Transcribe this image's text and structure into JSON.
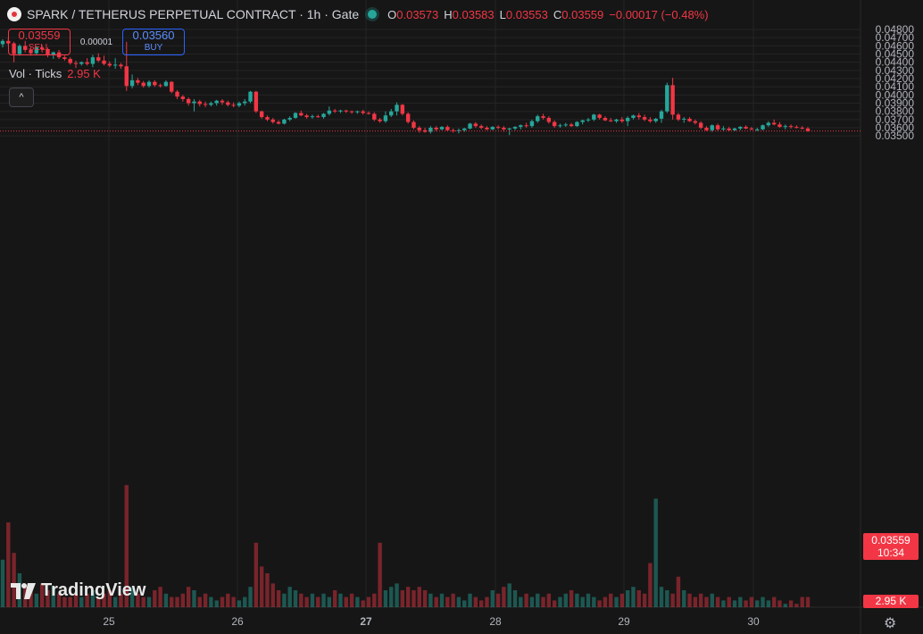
{
  "header": {
    "title": "SPARK / TETHERUS PERPETUAL CONTRACT · 1h · Gate",
    "ohlc": [
      {
        "k": "O",
        "v": "0.03573"
      },
      {
        "k": "H",
        "v": "0.03583"
      },
      {
        "k": "L",
        "v": "0.03553"
      },
      {
        "k": "C",
        "v": "0.03559"
      }
    ],
    "change": "−0.00017 (−0.48%)"
  },
  "trade": {
    "sell_price": "0.03559",
    "sell_label": "SELL",
    "spread": "0.00001",
    "buy_price": "0.03560",
    "buy_label": "BUY"
  },
  "volume": {
    "label": "Vol · Ticks",
    "value": "2.95 K"
  },
  "collapse_icon": "chevron-up-icon",
  "branding": "TradingView",
  "price_label": {
    "price": "0.03559",
    "countdown": "10:34"
  },
  "vol_label": "2.95 K",
  "colors": {
    "up": "#26a69a",
    "down": "#f23645",
    "bg": "#161616",
    "grid": "#242424"
  },
  "chart_data": {
    "type": "candlestick",
    "y_ticks": [
      "0.04800",
      "0.04700",
      "0.04600",
      "0.04500",
      "0.04400",
      "0.04300",
      "0.04200",
      "0.04100",
      "0.04000",
      "0.03900",
      "0.03800",
      "0.03700",
      "0.03600",
      "0.03500"
    ],
    "ylim": [
      0.0345,
      0.0482
    ],
    "x_labels": [
      "25",
      "26",
      "27",
      "28",
      "29",
      "30"
    ],
    "last_price": 0.03559,
    "candles": [
      [
        0.0462,
        0.0468,
        0.0458,
        0.0466
      ],
      [
        0.0466,
        0.047,
        0.046,
        0.0463
      ],
      [
        0.0463,
        0.0465,
        0.044,
        0.045
      ],
      [
        0.045,
        0.0462,
        0.0448,
        0.046
      ],
      [
        0.046,
        0.0466,
        0.0452,
        0.0455
      ],
      [
        0.0455,
        0.0458,
        0.0448,
        0.0451
      ],
      [
        0.0451,
        0.046,
        0.0449,
        0.0458
      ],
      [
        0.0458,
        0.0461,
        0.0452,
        0.0456
      ],
      [
        0.0456,
        0.0458,
        0.0446,
        0.0449
      ],
      [
        0.0449,
        0.0453,
        0.0444,
        0.0452
      ],
      [
        0.0452,
        0.0455,
        0.0444,
        0.0446
      ],
      [
        0.0446,
        0.0448,
        0.0442,
        0.0444
      ],
      [
        0.0444,
        0.0446,
        0.0437,
        0.0439
      ],
      [
        0.0439,
        0.0442,
        0.0433,
        0.0438
      ],
      [
        0.0438,
        0.0441,
        0.0436,
        0.044
      ],
      [
        0.044,
        0.0445,
        0.0436,
        0.0438
      ],
      [
        0.0438,
        0.0449,
        0.0434,
        0.0446
      ],
      [
        0.0446,
        0.0451,
        0.044,
        0.0442
      ],
      [
        0.0442,
        0.0448,
        0.0436,
        0.0438
      ],
      [
        0.0438,
        0.0441,
        0.0434,
        0.0436
      ],
      [
        0.0436,
        0.0445,
        0.0432,
        0.0437
      ],
      [
        0.0437,
        0.0439,
        0.0432,
        0.0435
      ],
      [
        0.0435,
        0.0465,
        0.0405,
        0.0411
      ],
      [
        0.0411,
        0.0425,
        0.0408,
        0.0418
      ],
      [
        0.0418,
        0.0421,
        0.0412,
        0.0415
      ],
      [
        0.0415,
        0.0417,
        0.0409,
        0.0411
      ],
      [
        0.0411,
        0.0418,
        0.0409,
        0.0416
      ],
      [
        0.0416,
        0.0418,
        0.041,
        0.0412
      ],
      [
        0.0412,
        0.0414,
        0.0409,
        0.0411
      ],
      [
        0.0411,
        0.0418,
        0.041,
        0.0416
      ],
      [
        0.0416,
        0.0417,
        0.0402,
        0.0404
      ],
      [
        0.0404,
        0.0406,
        0.0395,
        0.0398
      ],
      [
        0.0398,
        0.04,
        0.0392,
        0.0395
      ],
      [
        0.0395,
        0.0397,
        0.0387,
        0.039
      ],
      [
        0.039,
        0.0395,
        0.038,
        0.0392
      ],
      [
        0.0392,
        0.0394,
        0.0386,
        0.0389
      ],
      [
        0.0389,
        0.0392,
        0.0385,
        0.0388
      ],
      [
        0.0388,
        0.0392,
        0.0386,
        0.039
      ],
      [
        0.039,
        0.0394,
        0.0387,
        0.0393
      ],
      [
        0.0393,
        0.0395,
        0.0388,
        0.0391
      ],
      [
        0.0391,
        0.0393,
        0.0386,
        0.0388
      ],
      [
        0.0388,
        0.0391,
        0.0385,
        0.0387
      ],
      [
        0.0387,
        0.0392,
        0.0385,
        0.039
      ],
      [
        0.039,
        0.0395,
        0.0387,
        0.0392
      ],
      [
        0.0392,
        0.0405,
        0.039,
        0.0404
      ],
      [
        0.0404,
        0.0405,
        0.0378,
        0.038
      ],
      [
        0.038,
        0.0381,
        0.0371,
        0.0373
      ],
      [
        0.0373,
        0.0375,
        0.0368,
        0.037
      ],
      [
        0.037,
        0.0372,
        0.0365,
        0.0367
      ],
      [
        0.0367,
        0.0369,
        0.0364,
        0.0365
      ],
      [
        0.0365,
        0.0371,
        0.0364,
        0.037
      ],
      [
        0.037,
        0.0374,
        0.0368,
        0.0372
      ],
      [
        0.0372,
        0.0379,
        0.0371,
        0.0378
      ],
      [
        0.0378,
        0.0381,
        0.0374,
        0.0375
      ],
      [
        0.0375,
        0.0377,
        0.0371,
        0.0373
      ],
      [
        0.0373,
        0.0376,
        0.0371,
        0.0374
      ],
      [
        0.0374,
        0.0376,
        0.0372,
        0.0373
      ],
      [
        0.0373,
        0.0378,
        0.0371,
        0.0377
      ],
      [
        0.0377,
        0.0386,
        0.0375,
        0.0381
      ],
      [
        0.0381,
        0.0383,
        0.0378,
        0.038
      ],
      [
        0.038,
        0.0382,
        0.0378,
        0.0381
      ],
      [
        0.0381,
        0.0382,
        0.0378,
        0.038
      ],
      [
        0.038,
        0.0381,
        0.0377,
        0.0379
      ],
      [
        0.0379,
        0.0381,
        0.0377,
        0.038
      ],
      [
        0.038,
        0.0382,
        0.0376,
        0.0378
      ],
      [
        0.0378,
        0.038,
        0.0376,
        0.0377
      ],
      [
        0.0377,
        0.0379,
        0.0368,
        0.037
      ],
      [
        0.037,
        0.0372,
        0.0366,
        0.0368
      ],
      [
        0.0368,
        0.038,
        0.0366,
        0.0375
      ],
      [
        0.0375,
        0.0383,
        0.0373,
        0.038
      ],
      [
        0.038,
        0.0391,
        0.0375,
        0.0388
      ],
      [
        0.0388,
        0.0389,
        0.0375,
        0.0377
      ],
      [
        0.0377,
        0.0379,
        0.0365,
        0.0367
      ],
      [
        0.0367,
        0.0369,
        0.0358,
        0.036
      ],
      [
        0.036,
        0.0362,
        0.0354,
        0.0357
      ],
      [
        0.0357,
        0.036,
        0.0354,
        0.0355
      ],
      [
        0.0355,
        0.0362,
        0.0353,
        0.036
      ],
      [
        0.036,
        0.0362,
        0.0356,
        0.0358
      ],
      [
        0.0358,
        0.0362,
        0.0357,
        0.0361
      ],
      [
        0.0361,
        0.0363,
        0.0356,
        0.0357
      ],
      [
        0.0357,
        0.0359,
        0.0354,
        0.0356
      ],
      [
        0.0356,
        0.0359,
        0.0353,
        0.0357
      ],
      [
        0.0357,
        0.036,
        0.0355,
        0.0359
      ],
      [
        0.0359,
        0.0366,
        0.0358,
        0.0365
      ],
      [
        0.0365,
        0.0367,
        0.036,
        0.0362
      ],
      [
        0.0362,
        0.0364,
        0.0358,
        0.036
      ],
      [
        0.036,
        0.0362,
        0.0357,
        0.0358
      ],
      [
        0.0358,
        0.0362,
        0.0357,
        0.0361
      ],
      [
        0.0361,
        0.0363,
        0.0358,
        0.036
      ],
      [
        0.036,
        0.0362,
        0.0355,
        0.0358
      ],
      [
        0.0358,
        0.036,
        0.0351,
        0.0359
      ],
      [
        0.0359,
        0.0362,
        0.0357,
        0.0361
      ],
      [
        0.0361,
        0.0364,
        0.0358,
        0.0363
      ],
      [
        0.0363,
        0.0366,
        0.036,
        0.0362
      ],
      [
        0.0362,
        0.037,
        0.036,
        0.0368
      ],
      [
        0.0368,
        0.0376,
        0.0366,
        0.0374
      ],
      [
        0.0374,
        0.0377,
        0.037,
        0.0372
      ],
      [
        0.0372,
        0.0374,
        0.0365,
        0.0367
      ],
      [
        0.0367,
        0.0369,
        0.036,
        0.0362
      ],
      [
        0.0362,
        0.0365,
        0.036,
        0.0363
      ],
      [
        0.0363,
        0.0366,
        0.0361,
        0.0364
      ],
      [
        0.0364,
        0.0366,
        0.0361,
        0.0362
      ],
      [
        0.0362,
        0.0368,
        0.0361,
        0.0367
      ],
      [
        0.0367,
        0.037,
        0.0364,
        0.0369
      ],
      [
        0.0369,
        0.0372,
        0.0367,
        0.037
      ],
      [
        0.037,
        0.0377,
        0.0368,
        0.0376
      ],
      [
        0.0376,
        0.0377,
        0.037,
        0.0372
      ],
      [
        0.0372,
        0.0374,
        0.0368,
        0.0369
      ],
      [
        0.0369,
        0.0372,
        0.0367,
        0.0368
      ],
      [
        0.0368,
        0.0371,
        0.0366,
        0.037
      ],
      [
        0.037,
        0.0373,
        0.0366,
        0.0368
      ],
      [
        0.0368,
        0.0374,
        0.0362,
        0.0372
      ],
      [
        0.0372,
        0.0376,
        0.037,
        0.0375
      ],
      [
        0.0375,
        0.0378,
        0.037,
        0.0373
      ],
      [
        0.0373,
        0.0376,
        0.0368,
        0.037
      ],
      [
        0.037,
        0.0373,
        0.0366,
        0.0368
      ],
      [
        0.0368,
        0.0372,
        0.0366,
        0.0371
      ],
      [
        0.0371,
        0.0382,
        0.0366,
        0.038
      ],
      [
        0.038,
        0.0415,
        0.0378,
        0.0412
      ],
      [
        0.0412,
        0.0421,
        0.037,
        0.0376
      ],
      [
        0.0376,
        0.0378,
        0.0368,
        0.037
      ],
      [
        0.037,
        0.0373,
        0.0366,
        0.0371
      ],
      [
        0.0371,
        0.0373,
        0.0367,
        0.0368
      ],
      [
        0.0368,
        0.037,
        0.0364,
        0.0366
      ],
      [
        0.0366,
        0.0368,
        0.0358,
        0.036
      ],
      [
        0.036,
        0.0362,
        0.0356,
        0.0357
      ],
      [
        0.0357,
        0.0364,
        0.0355,
        0.0363
      ],
      [
        0.0363,
        0.0365,
        0.0356,
        0.0358
      ],
      [
        0.0358,
        0.0362,
        0.0356,
        0.0359
      ],
      [
        0.0359,
        0.0361,
        0.0356,
        0.0357
      ],
      [
        0.0357,
        0.036,
        0.0356,
        0.0359
      ],
      [
        0.0359,
        0.0362,
        0.0357,
        0.0361
      ],
      [
        0.0361,
        0.0363,
        0.0358,
        0.0359
      ],
      [
        0.0359,
        0.0361,
        0.0357,
        0.0358
      ],
      [
        0.0358,
        0.036,
        0.0356,
        0.0358
      ],
      [
        0.0358,
        0.0364,
        0.0357,
        0.0363
      ],
      [
        0.0363,
        0.0368,
        0.0361,
        0.0366
      ],
      [
        0.0366,
        0.037,
        0.0363,
        0.0364
      ],
      [
        0.0364,
        0.0367,
        0.036,
        0.0361
      ],
      [
        0.0361,
        0.0364,
        0.0358,
        0.0362
      ],
      [
        0.0362,
        0.0364,
        0.0359,
        0.0361
      ],
      [
        0.0361,
        0.0363,
        0.0359,
        0.036
      ],
      [
        0.036,
        0.0362,
        0.0358,
        0.0359
      ],
      [
        0.0359,
        0.0361,
        0.0355,
        0.0356
      ]
    ],
    "volumes": [
      0.14,
      0.25,
      0.16,
      0.1,
      0.06,
      0.05,
      0.04,
      0.07,
      0.05,
      0.06,
      0.04,
      0.03,
      0.03,
      0.04,
      0.03,
      0.04,
      0.05,
      0.03,
      0.04,
      0.05,
      0.03,
      0.04,
      0.36,
      0.06,
      0.04,
      0.03,
      0.03,
      0.05,
      0.06,
      0.04,
      0.03,
      0.03,
      0.04,
      0.06,
      0.05,
      0.03,
      0.04,
      0.03,
      0.02,
      0.03,
      0.04,
      0.03,
      0.02,
      0.03,
      0.06,
      0.19,
      0.12,
      0.1,
      0.07,
      0.05,
      0.04,
      0.06,
      0.05,
      0.04,
      0.03,
      0.04,
      0.03,
      0.04,
      0.03,
      0.05,
      0.04,
      0.03,
      0.04,
      0.03,
      0.02,
      0.03,
      0.04,
      0.19,
      0.05,
      0.06,
      0.07,
      0.05,
      0.06,
      0.05,
      0.06,
      0.05,
      0.04,
      0.03,
      0.04,
      0.03,
      0.04,
      0.03,
      0.02,
      0.04,
      0.03,
      0.02,
      0.03,
      0.05,
      0.04,
      0.06,
      0.07,
      0.05,
      0.03,
      0.04,
      0.03,
      0.04,
      0.03,
      0.04,
      0.02,
      0.03,
      0.04,
      0.05,
      0.04,
      0.03,
      0.04,
      0.03,
      0.02,
      0.03,
      0.04,
      0.03,
      0.04,
      0.05,
      0.06,
      0.05,
      0.04,
      0.13,
      0.32,
      0.06,
      0.05,
      0.04,
      0.09,
      0.05,
      0.04,
      0.03,
      0.04,
      0.03,
      0.04,
      0.03,
      0.02,
      0.03,
      0.02,
      0.03,
      0.02,
      0.03,
      0.02,
      0.03,
      0.02,
      0.03,
      0.02,
      0.01,
      0.02,
      0.01
    ]
  }
}
